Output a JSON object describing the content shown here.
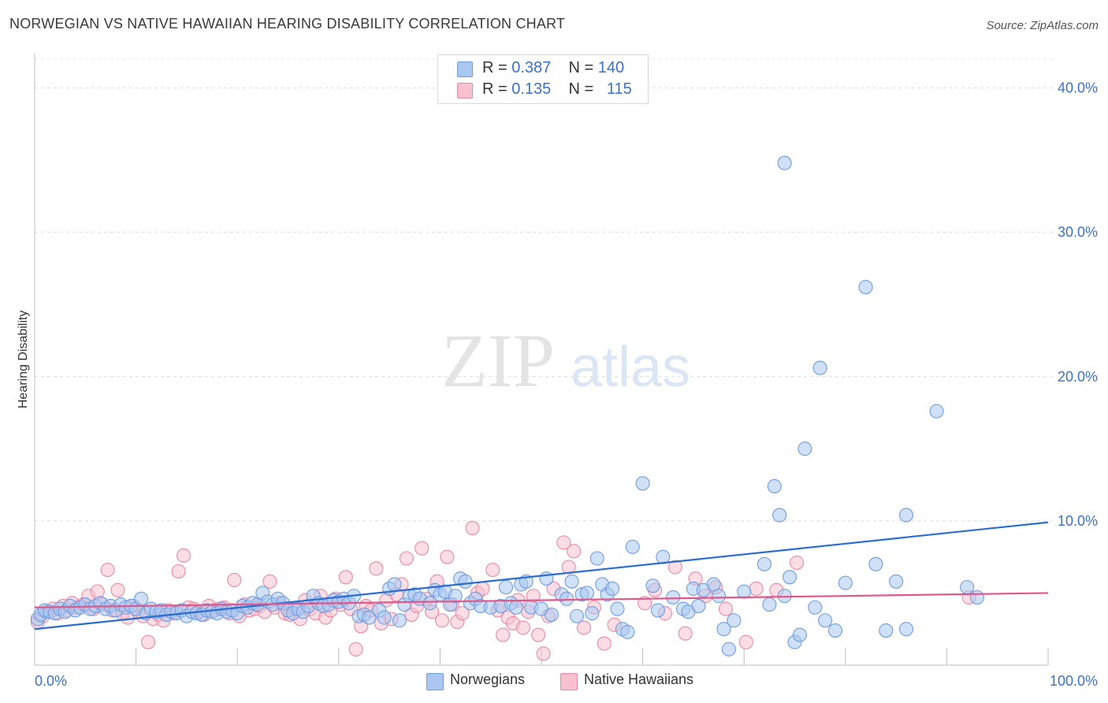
{
  "header": {
    "title": "NORWEGIAN VS NATIVE HAWAIIAN HEARING DISABILITY CORRELATION CHART",
    "source": "Source: ZipAtlas.com"
  },
  "legend": {
    "rows": [
      {
        "r_label": "R =",
        "r_value": "0.387",
        "n_label": "N =",
        "n_value": "140",
        "color": "#a9c7f0",
        "stroke": "#6f9de0"
      },
      {
        "r_label": "R =",
        "r_value": "0.135",
        "n_label": "N =",
        "n_value": "115",
        "color": "#f7c1cf",
        "stroke": "#e88aa4"
      }
    ]
  },
  "bottom_legend": [
    {
      "label": "Norwegians",
      "color": "#a9c7f0",
      "stroke": "#6f9de0"
    },
    {
      "label": "Native Hawaiians",
      "color": "#f7c1cf",
      "stroke": "#e88aa4"
    }
  ],
  "watermark": {
    "zip": "ZIP",
    "atlas": "atlas"
  },
  "chart_data": {
    "type": "scatter",
    "title": "NORWEGIAN VS NATIVE HAWAIIAN HEARING DISABILITY CORRELATION CHART",
    "xlabel": "",
    "ylabel": "Hearing Disability",
    "xlim": [
      0,
      100
    ],
    "ylim": [
      0,
      42
    ],
    "x_tick_labels": [
      "0.0%",
      "100.0%"
    ],
    "y_ticks": [
      10,
      20,
      30,
      40
    ],
    "y_tick_labels": [
      "10.0%",
      "20.0%",
      "30.0%",
      "40.0%"
    ],
    "grid": true,
    "legend_position": "top-center",
    "series": [
      {
        "name": "Norwegians",
        "color": "#6f9de0",
        "fill": "#a9c7f0",
        "trend": {
          "x": [
            0,
            100
          ],
          "y": [
            2.5,
            9.9
          ]
        },
        "points": [
          [
            0.3,
            3.2
          ],
          [
            0.6,
            3.5
          ],
          [
            1,
            3.8
          ],
          [
            1.5,
            3.7
          ],
          [
            2,
            3.6
          ],
          [
            2.5,
            3.9
          ],
          [
            3,
            3.7
          ],
          [
            3.5,
            4.1
          ],
          [
            4,
            3.8
          ],
          [
            4.5,
            4.0
          ],
          [
            5,
            4.2
          ],
          [
            5.5,
            3.9
          ],
          [
            6,
            4.1
          ],
          [
            6.5,
            4.3
          ],
          [
            7,
            3.9
          ],
          [
            7.5,
            4.1
          ],
          [
            8,
            3.8
          ],
          [
            8.5,
            4.2
          ],
          [
            9,
            4.0
          ],
          [
            9.5,
            4.1
          ],
          [
            10,
            3.9
          ],
          [
            10.5,
            4.6
          ],
          [
            11,
            3.6
          ],
          [
            11.5,
            3.9
          ],
          [
            12,
            3.7
          ],
          [
            12.5,
            3.8
          ],
          [
            13,
            3.5
          ],
          [
            13.5,
            3.7
          ],
          [
            14,
            3.6
          ],
          [
            14.5,
            3.8
          ],
          [
            15,
            3.4
          ],
          [
            15.5,
            3.7
          ],
          [
            16,
            3.6
          ],
          [
            16.5,
            3.5
          ],
          [
            17,
            3.8
          ],
          [
            17.5,
            3.7
          ],
          [
            18,
            3.6
          ],
          [
            18.5,
            3.9
          ],
          [
            19,
            3.7
          ],
          [
            19.5,
            3.8
          ],
          [
            20,
            3.6
          ],
          [
            20.5,
            4.1
          ],
          [
            21,
            4.0
          ],
          [
            21.5,
            4.3
          ],
          [
            22,
            4.2
          ],
          [
            22.5,
            5.0
          ],
          [
            23,
            4.4
          ],
          [
            23.5,
            4.2
          ],
          [
            24,
            4.6
          ],
          [
            24.5,
            4.3
          ],
          [
            25,
            3.8
          ],
          [
            25.5,
            3.6
          ],
          [
            26,
            3.9
          ],
          [
            26.5,
            3.7
          ],
          [
            27,
            4.1
          ],
          [
            27.5,
            4.8
          ],
          [
            28,
            4.3
          ],
          [
            28.5,
            4.1
          ],
          [
            29,
            4.2
          ],
          [
            29.5,
            4.5
          ],
          [
            30,
            4.4
          ],
          [
            30.5,
            4.6
          ],
          [
            31,
            4.3
          ],
          [
            31.5,
            4.8
          ],
          [
            32,
            3.4
          ],
          [
            32.5,
            3.5
          ],
          [
            33,
            3.3
          ],
          [
            34,
            3.8
          ],
          [
            34.5,
            3.3
          ],
          [
            35,
            5.3
          ],
          [
            35.5,
            5.6
          ],
          [
            36,
            3.1
          ],
          [
            36.5,
            4.2
          ],
          [
            37,
            4.8
          ],
          [
            37.5,
            4.9
          ],
          [
            38,
            4.6
          ],
          [
            39,
            4.3
          ],
          [
            39.5,
            5.2
          ],
          [
            40,
            4.9
          ],
          [
            40.5,
            5.1
          ],
          [
            41,
            4.2
          ],
          [
            41.5,
            4.8
          ],
          [
            42,
            6.0
          ],
          [
            42.5,
            5.8
          ],
          [
            43,
            4.3
          ],
          [
            43.5,
            4.6
          ],
          [
            44,
            4.1
          ],
          [
            45,
            4.0
          ],
          [
            46,
            4.1
          ],
          [
            46.5,
            5.4
          ],
          [
            47,
            4.3
          ],
          [
            47.5,
            4.0
          ],
          [
            48,
            5.6
          ],
          [
            48.5,
            5.8
          ],
          [
            49,
            4.0
          ],
          [
            50,
            3.9
          ],
          [
            50.5,
            6.0
          ],
          [
            51,
            3.5
          ],
          [
            52,
            4.9
          ],
          [
            52.5,
            4.6
          ],
          [
            53,
            5.8
          ],
          [
            53.5,
            3.4
          ],
          [
            54,
            4.9
          ],
          [
            54.5,
            5.0
          ],
          [
            55,
            3.6
          ],
          [
            55.5,
            7.4
          ],
          [
            56,
            5.6
          ],
          [
            56.5,
            4.9
          ],
          [
            57,
            5.3
          ],
          [
            57.5,
            3.9
          ],
          [
            58,
            2.5
          ],
          [
            58.5,
            2.3
          ],
          [
            59,
            8.2
          ],
          [
            60,
            12.6
          ],
          [
            61,
            5.5
          ],
          [
            61.5,
            3.8
          ],
          [
            62,
            7.5
          ],
          [
            63,
            4.7
          ],
          [
            64,
            3.9
          ],
          [
            64.5,
            3.7
          ],
          [
            65,
            5.3
          ],
          [
            65.5,
            4.1
          ],
          [
            66,
            5.2
          ],
          [
            67,
            5.6
          ],
          [
            67.5,
            4.8
          ],
          [
            68,
            2.5
          ],
          [
            68.5,
            1.1
          ],
          [
            69,
            3.1
          ],
          [
            70,
            5.1
          ],
          [
            72,
            7.0
          ],
          [
            72.5,
            4.2
          ],
          [
            73,
            12.4
          ],
          [
            73.5,
            10.4
          ],
          [
            74,
            4.8
          ],
          [
            74.5,
            6.1
          ],
          [
            75,
            1.6
          ],
          [
            75.5,
            2.1
          ],
          [
            76,
            15.0
          ],
          [
            77,
            4.0
          ],
          [
            77.5,
            20.6
          ],
          [
            78,
            3.1
          ],
          [
            79,
            2.4
          ],
          [
            80,
            5.7
          ],
          [
            82,
            26.2
          ],
          [
            83,
            7.0
          ],
          [
            84,
            2.4
          ],
          [
            85,
            5.8
          ],
          [
            86,
            2.5
          ],
          [
            89,
            17.6
          ],
          [
            92,
            5.4
          ],
          [
            93,
            4.7
          ],
          [
            74,
            34.8
          ],
          [
            86,
            10.4
          ]
        ]
      },
      {
        "name": "Native Hawaiians",
        "color": "#e88aa4",
        "fill": "#f7c1cf",
        "trend": {
          "x": [
            0,
            100
          ],
          "y": [
            4.0,
            5.0
          ]
        },
        "points": [
          [
            0.3,
            3.0
          ],
          [
            0.8,
            3.4
          ],
          [
            1.2,
            3.7
          ],
          [
            1.8,
            3.9
          ],
          [
            2.3,
            3.6
          ],
          [
            2.8,
            4.1
          ],
          [
            3.2,
            3.8
          ],
          [
            3.7,
            4.3
          ],
          [
            4.2,
            4.0
          ],
          [
            4.8,
            4.2
          ],
          [
            5.3,
            4.8
          ],
          [
            5.8,
            3.9
          ],
          [
            6.2,
            5.1
          ],
          [
            6.7,
            4.2
          ],
          [
            7.2,
            6.6
          ],
          [
            7.7,
            3.8
          ],
          [
            8.2,
            5.2
          ],
          [
            8.7,
            3.6
          ],
          [
            9.2,
            3.3
          ],
          [
            9.7,
            4.1
          ],
          [
            10.2,
            3.7
          ],
          [
            10.7,
            3.4
          ],
          [
            11.2,
            1.6
          ],
          [
            11.7,
            3.2
          ],
          [
            12.2,
            3.5
          ],
          [
            12.7,
            3.1
          ],
          [
            13.2,
            3.8
          ],
          [
            13.7,
            3.6
          ],
          [
            14.2,
            6.5
          ],
          [
            14.7,
            7.6
          ],
          [
            15.2,
            4.0
          ],
          [
            15.7,
            3.9
          ],
          [
            16.2,
            3.7
          ],
          [
            16.7,
            3.5
          ],
          [
            17.2,
            4.1
          ],
          [
            17.7,
            3.8
          ],
          [
            18.2,
            3.9
          ],
          [
            18.7,
            4.0
          ],
          [
            19.2,
            3.6
          ],
          [
            19.7,
            5.9
          ],
          [
            20.2,
            3.4
          ],
          [
            20.7,
            4.2
          ],
          [
            21.2,
            3.8
          ],
          [
            21.7,
            3.9
          ],
          [
            22.2,
            4.1
          ],
          [
            22.7,
            3.7
          ],
          [
            23.2,
            5.8
          ],
          [
            23.7,
            4.0
          ],
          [
            24.2,
            4.3
          ],
          [
            24.7,
            3.6
          ],
          [
            25.2,
            3.5
          ],
          [
            25.7,
            3.9
          ],
          [
            26.2,
            3.2
          ],
          [
            26.7,
            4.5
          ],
          [
            27.2,
            3.9
          ],
          [
            27.7,
            3.6
          ],
          [
            28.2,
            4.8
          ],
          [
            28.7,
            3.3
          ],
          [
            29.2,
            3.8
          ],
          [
            29.7,
            4.6
          ],
          [
            30.2,
            4.2
          ],
          [
            30.7,
            6.1
          ],
          [
            31.2,
            3.9
          ],
          [
            31.7,
            1.1
          ],
          [
            32.2,
            2.7
          ],
          [
            32.7,
            4.1
          ],
          [
            33.2,
            3.8
          ],
          [
            33.7,
            6.7
          ],
          [
            34.2,
            2.9
          ],
          [
            34.7,
            4.5
          ],
          [
            35.2,
            3.2
          ],
          [
            35.7,
            4.9
          ],
          [
            36.2,
            5.6
          ],
          [
            36.7,
            7.4
          ],
          [
            37.2,
            3.5
          ],
          [
            37.7,
            4.1
          ],
          [
            38.2,
            8.1
          ],
          [
            38.7,
            4.6
          ],
          [
            39.2,
            3.7
          ],
          [
            39.7,
            5.8
          ],
          [
            40.2,
            3.1
          ],
          [
            40.7,
            7.5
          ],
          [
            41.2,
            4.2
          ],
          [
            41.7,
            3.0
          ],
          [
            42.2,
            3.6
          ],
          [
            43.2,
            9.5
          ],
          [
            43.7,
            5.0
          ],
          [
            44.2,
            5.3
          ],
          [
            45.2,
            6.6
          ],
          [
            45.7,
            3.8
          ],
          [
            46.2,
            2.1
          ],
          [
            46.7,
            3.3
          ],
          [
            47.2,
            2.9
          ],
          [
            47.7,
            4.5
          ],
          [
            48.2,
            2.6
          ],
          [
            48.7,
            3.7
          ],
          [
            49.2,
            4.8
          ],
          [
            49.7,
            2.1
          ],
          [
            50.2,
            0.8
          ],
          [
            50.7,
            3.4
          ],
          [
            51.2,
            5.3
          ],
          [
            52.2,
            8.5
          ],
          [
            52.7,
            6.8
          ],
          [
            53.2,
            7.9
          ],
          [
            54.2,
            2.6
          ],
          [
            55.2,
            4.0
          ],
          [
            56.2,
            1.5
          ],
          [
            57.2,
            2.8
          ],
          [
            60.2,
            4.3
          ],
          [
            61.2,
            5.2
          ],
          [
            62.2,
            3.6
          ],
          [
            63.2,
            6.8
          ],
          [
            64.2,
            2.2
          ],
          [
            65.2,
            6.0
          ],
          [
            66.2,
            4.8
          ],
          [
            67.2,
            5.4
          ],
          [
            68.2,
            3.9
          ],
          [
            70.2,
            1.6
          ],
          [
            71.2,
            5.3
          ],
          [
            73.2,
            5.2
          ],
          [
            75.2,
            7.1
          ],
          [
            92.2,
            4.7
          ]
        ]
      }
    ]
  }
}
